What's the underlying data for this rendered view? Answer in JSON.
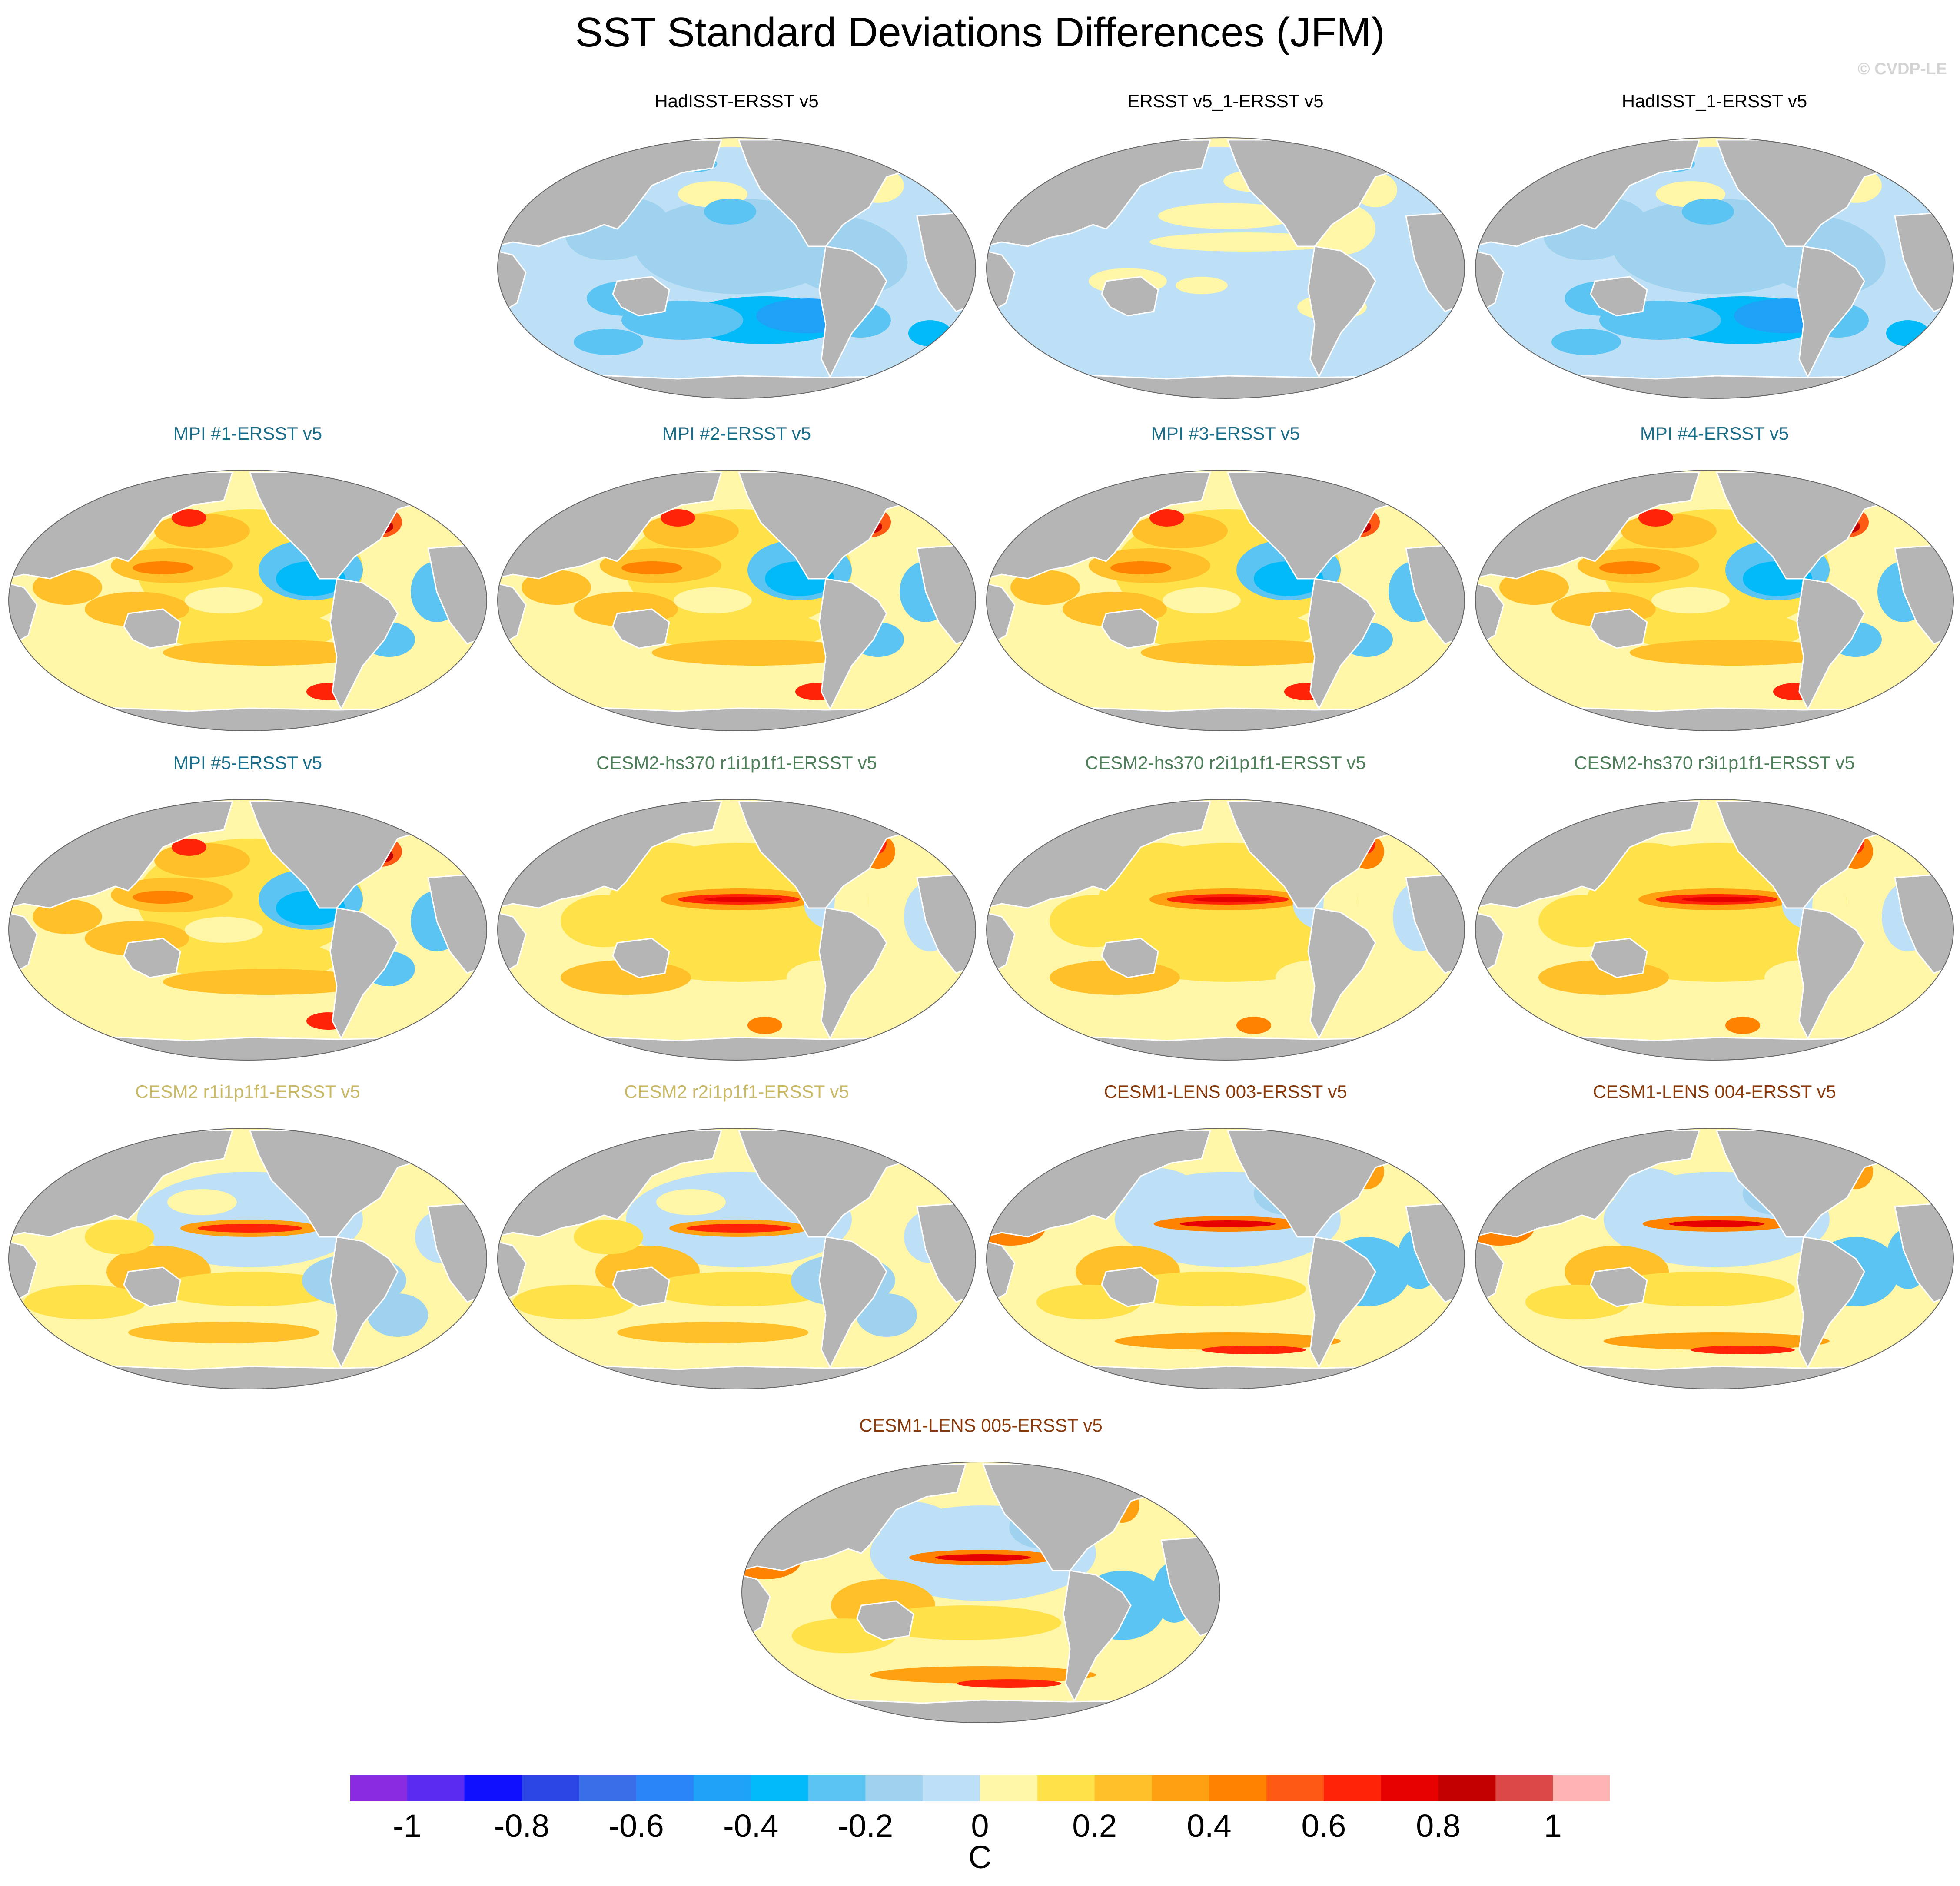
{
  "title": "SST Standard Deviations Differences (JFM)",
  "credit": "© CVDP-LE",
  "panels": [
    {
      "title": "HadISST-ERSST v5",
      "title_color": "#000000",
      "pattern": "obs1"
    },
    {
      "title": "ERSST v5_1-ERSST v5",
      "title_color": "#000000",
      "pattern": "obs2"
    },
    {
      "title": "HadISST_1-ERSST v5",
      "title_color": "#000000",
      "pattern": "obs1"
    },
    {
      "title": "MPI #1-ERSST v5",
      "title_color": "#1a6e8a",
      "pattern": "mpi"
    },
    {
      "title": "MPI #2-ERSST v5",
      "title_color": "#1a6e8a",
      "pattern": "mpi"
    },
    {
      "title": "MPI #3-ERSST v5",
      "title_color": "#1a6e8a",
      "pattern": "mpi"
    },
    {
      "title": "MPI #4-ERSST v5",
      "title_color": "#1a6e8a",
      "pattern": "mpi"
    },
    {
      "title": "MPI #5-ERSST v5",
      "title_color": "#1a6e8a",
      "pattern": "mpi"
    },
    {
      "title": "CESM2-hs370 r1i1p1f1-ERSST v5",
      "title_color": "#4f7f5a",
      "pattern": "hs370"
    },
    {
      "title": "CESM2-hs370 r2i1p1f1-ERSST v5",
      "title_color": "#4f7f5a",
      "pattern": "hs370"
    },
    {
      "title": "CESM2-hs370 r3i1p1f1-ERSST v5",
      "title_color": "#4f7f5a",
      "pattern": "hs370"
    },
    {
      "title": "CESM2 r1i1p1f1-ERSST v5",
      "title_color": "#c9b864",
      "pattern": "cesm2"
    },
    {
      "title": "CESM2 r2i1p1f1-ERSST v5",
      "title_color": "#c9b864",
      "pattern": "cesm2"
    },
    {
      "title": "CESM1-LENS 003-ERSST v5",
      "title_color": "#8a3a0a",
      "pattern": "lens"
    },
    {
      "title": "CESM1-LENS 004-ERSST v5",
      "title_color": "#8a3a0a",
      "pattern": "lens"
    },
    {
      "title": "CESM1-LENS 005-ERSST v5",
      "title_color": "#8a3a0a",
      "pattern": "lens"
    }
  ],
  "colorbar": {
    "colors": [
      "#8a2be2",
      "#5a2bf0",
      "#1010ff",
      "#2c46e6",
      "#3a6ee8",
      "#2a86f8",
      "#1ea2f8",
      "#02baf8",
      "#5cc4f2",
      "#9fd2ee",
      "#bde0f6",
      "#fff6a8",
      "#ffe14a",
      "#ffc02a",
      "#ffa010",
      "#ff8200",
      "#ff5a14",
      "#ff2408",
      "#e60000",
      "#c20000",
      "#dc4848",
      "#ffb4b4"
    ],
    "tick_labels": [
      "-1",
      "-0.8",
      "-0.6",
      "-0.4",
      "-0.2",
      "0",
      "0.2",
      "0.4",
      "0.6",
      "0.8",
      "1"
    ],
    "units": "C"
  }
}
